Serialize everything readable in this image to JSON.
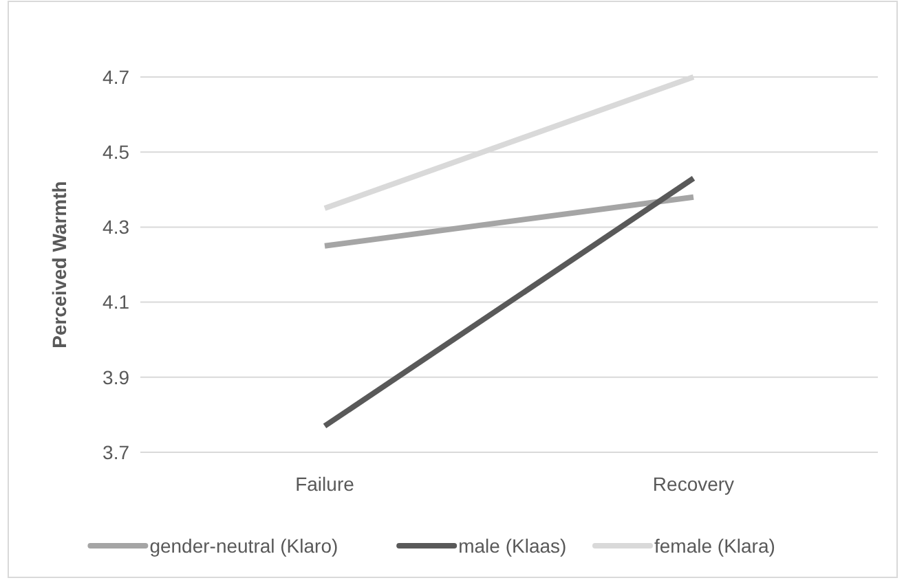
{
  "chart_data": {
    "type": "line",
    "ylabel": "Perceived Warmth",
    "categories": [
      "Failure",
      "Recovery"
    ],
    "series": [
      {
        "name": "gender-neutral (Klaro)",
        "color": "#a5a5a5",
        "values": [
          4.25,
          4.38
        ]
      },
      {
        "name": "male (Klaas)",
        "color": "#595959",
        "values": [
          3.77,
          4.43
        ]
      },
      {
        "name": "female (Klara)",
        "color": "#d9d9d9",
        "values": [
          4.35,
          4.7
        ]
      }
    ],
    "ylim": [
      3.7,
      4.7
    ],
    "yticks": [
      {
        "value": 3.7,
        "label": "3.7"
      },
      {
        "value": 3.9,
        "label": "3.9"
      },
      {
        "value": 4.1,
        "label": "4.1"
      },
      {
        "value": 4.3,
        "label": "4.3"
      },
      {
        "value": 4.5,
        "label": "4.5"
      },
      {
        "value": 4.7,
        "label": "4.7"
      }
    ],
    "grid": "y",
    "legend": "bottom",
    "marker": "none",
    "line_style": "solid"
  }
}
